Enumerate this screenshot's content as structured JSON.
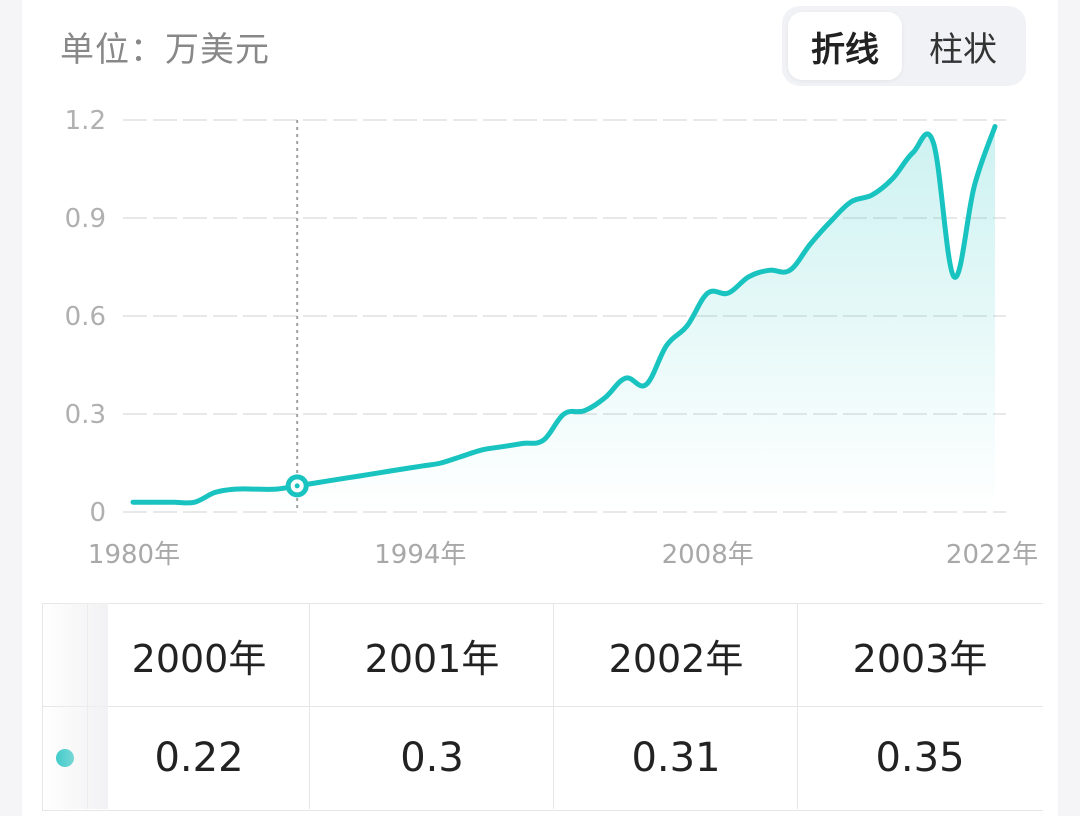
{
  "header": {
    "unit_label": "单位：万美元",
    "toggle": {
      "active_label": "折线",
      "inactive_label": "柱状"
    }
  },
  "colors": {
    "line": "#19c3c0",
    "grid": "#e8e8e8",
    "crosshair": "#a0a0a0"
  },
  "chart_data": {
    "type": "line",
    "x_unit_suffix": "年",
    "xlim": [
      1980,
      2022
    ],
    "x_ticks": [
      1980,
      1994,
      2008,
      2022
    ],
    "x_tick_labels": [
      "1980年",
      "1994年",
      "2008年",
      "2022年"
    ],
    "ylim": [
      0,
      1.2
    ],
    "y_ticks": [
      0,
      0.3,
      0.6,
      0.9,
      1.2
    ],
    "y_tick_labels": [
      "0",
      "0.3",
      "0.6",
      "0.9",
      "1.2"
    ],
    "grid": "horizontal",
    "area_fill": true,
    "highlight_x": 1988,
    "series": [
      {
        "x": [
          1980,
          1981,
          1982,
          1983,
          1984,
          1985,
          1986,
          1987,
          1988,
          1989,
          1990,
          1991,
          1992,
          1993,
          1994,
          1995,
          1996,
          1997,
          1998,
          1999,
          2000,
          2001,
          2002,
          2003,
          2004,
          2005,
          2006,
          2007,
          2008,
          2009,
          2010,
          2011,
          2012,
          2013,
          2014,
          2015,
          2016,
          2017,
          2018,
          2019,
          2020,
          2021,
          2022
        ],
        "values": [
          0.03,
          0.03,
          0.03,
          0.03,
          0.06,
          0.07,
          0.07,
          0.07,
          0.08,
          0.09,
          0.1,
          0.11,
          0.12,
          0.13,
          0.14,
          0.15,
          0.17,
          0.19,
          0.2,
          0.21,
          0.22,
          0.3,
          0.31,
          0.35,
          0.41,
          0.39,
          0.51,
          0.57,
          0.67,
          0.67,
          0.72,
          0.74,
          0.74,
          0.82,
          0.89,
          0.95,
          0.97,
          1.02,
          1.1,
          1.13,
          0.72,
          1.0,
          1.18
        ]
      }
    ]
  },
  "table": {
    "headers": [
      "2000年",
      "2001年",
      "2002年",
      "2003年"
    ],
    "values": [
      "0.22",
      "0.3",
      "0.31",
      "0.35"
    ]
  }
}
